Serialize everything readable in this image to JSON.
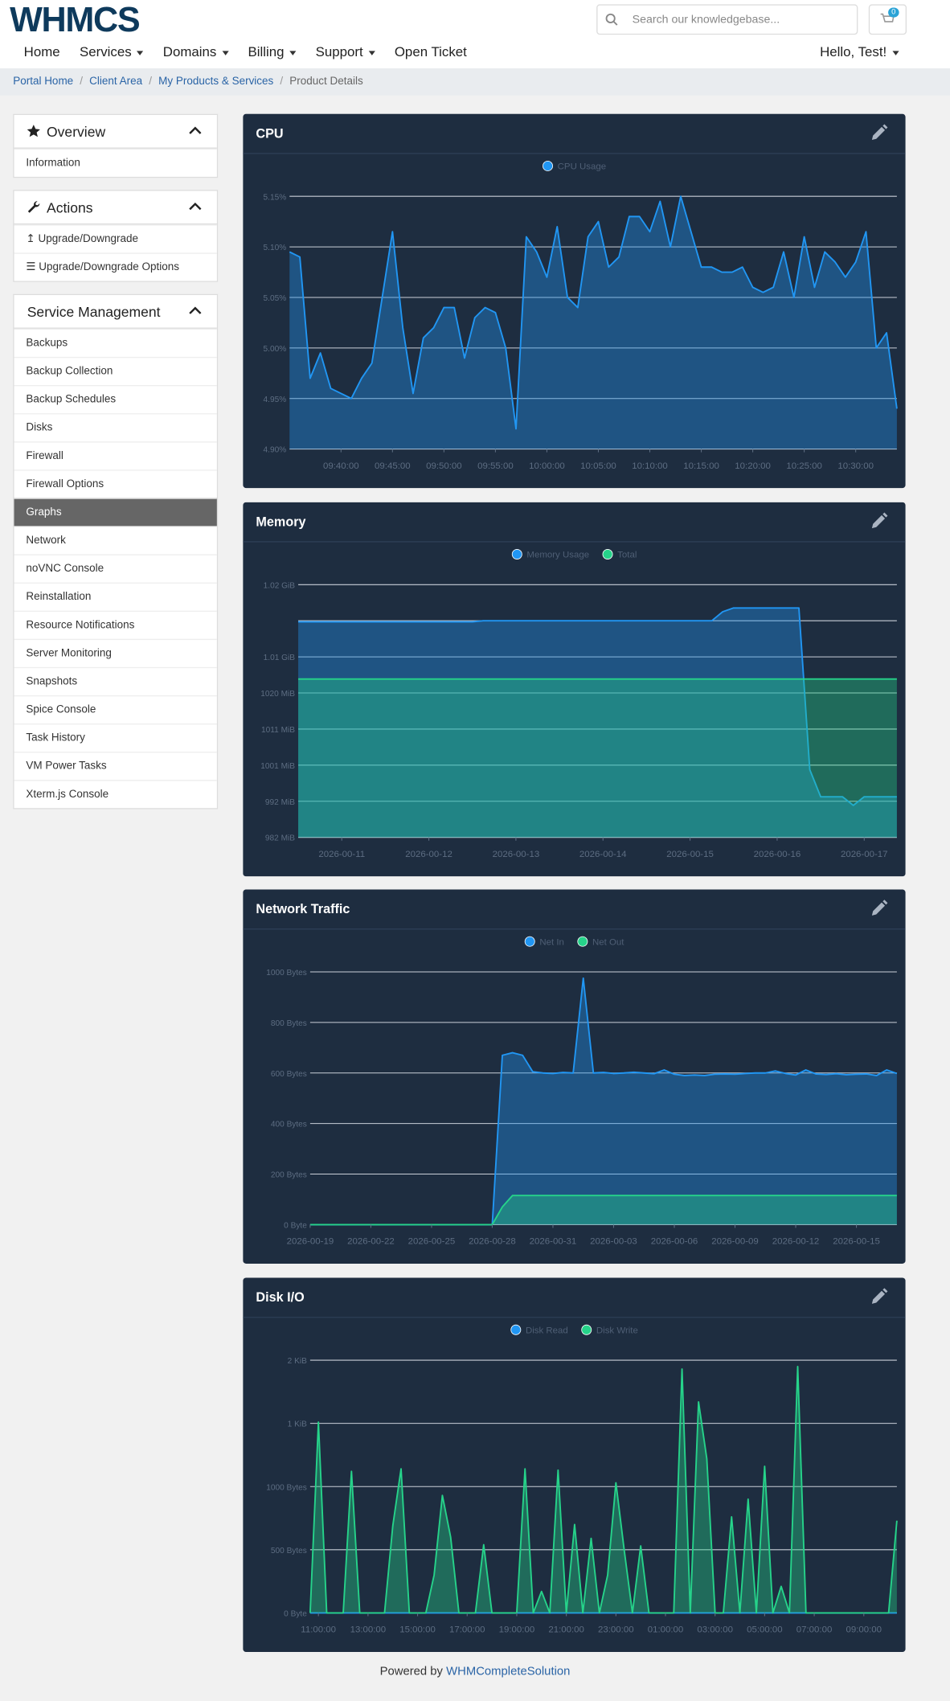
{
  "header": {
    "logo": "WHMCS",
    "search_placeholder": "Search our knowledgebase...",
    "cart_count": 0
  },
  "nav": {
    "items": [
      {
        "label": "Home",
        "dropdown": false
      },
      {
        "label": "Services",
        "dropdown": true
      },
      {
        "label": "Domains",
        "dropdown": true
      },
      {
        "label": "Billing",
        "dropdown": true
      },
      {
        "label": "Support",
        "dropdown": true
      },
      {
        "label": "Open Ticket",
        "dropdown": false
      }
    ],
    "user": "Hello, Test!"
  },
  "breadcrumb": [
    "Portal Home",
    "Client Area",
    "My Products & Services",
    "Product Details"
  ],
  "sidebar": [
    {
      "title": "Overview",
      "items": [
        "Information"
      ]
    },
    {
      "title": "Actions",
      "items": [
        "Upgrade/Downgrade",
        "Upgrade/Downgrade Options"
      ]
    },
    {
      "title": "Service Management",
      "items": [
        "Backups",
        "Backup Collection",
        "Backup Schedules",
        "Disks",
        "Firewall",
        "Firewall Options",
        "Graphs",
        "Network",
        "noVNC Console",
        "Reinstallation",
        "Resource Notifications",
        "Server Monitoring",
        "Snapshots",
        "Spice Console",
        "Task History",
        "VM Power Tasks",
        "Xterm.js Console"
      ],
      "active_index": 6
    }
  ],
  "chart_data": [
    {
      "type": "line",
      "title": "CPU",
      "categories": [
        null,
        null,
        null,
        null,
        null,
        "09:40:00",
        null,
        null,
        null,
        null,
        "09:45:00",
        null,
        null,
        null,
        null,
        "09:50:00",
        null,
        null,
        null,
        null,
        "09:55:00",
        null,
        null,
        null,
        null,
        "10:00:00",
        null,
        null,
        null,
        null,
        "10:05:00",
        null,
        null,
        null,
        null,
        "10:10:00",
        null,
        null,
        null,
        null,
        "10:15:00",
        null,
        null,
        null,
        null,
        "10:20:00",
        null,
        null,
        null,
        null,
        "10:25:00",
        null,
        null,
        null,
        null,
        "10:30:00",
        null,
        null,
        null,
        null
      ],
      "series": [
        {
          "name": "CPU Usage",
          "color": "#2196f3",
          "values": [
            5.095,
            5.09,
            4.97,
            4.995,
            4.96,
            4.955,
            4.95,
            4.97,
            4.985,
            5.05,
            5.115,
            5.02,
            4.955,
            5.01,
            5.02,
            5.04,
            5.04,
            4.99,
            5.03,
            5.04,
            5.035,
            5.0,
            4.92,
            5.11,
            5.095,
            5.07,
            5.12,
            5.05,
            5.04,
            5.11,
            5.125,
            5.08,
            5.09,
            5.13,
            5.13,
            5.115,
            5.145,
            5.1,
            5.15,
            5.115,
            5.08,
            5.08,
            5.075,
            5.075,
            5.08,
            5.06,
            5.055,
            5.06,
            5.095,
            5.05,
            5.11,
            5.06,
            5.095,
            5.085,
            5.07,
            5.085,
            5.115,
            5.0,
            5.015,
            4.94
          ]
        }
      ],
      "ylim": [
        4.9,
        5.15
      ],
      "yticks": [
        {
          "value": 4.9,
          "label": "4.90%"
        },
        {
          "value": 4.95,
          "label": "4.95%"
        },
        {
          "value": 5.0,
          "label": "5.00%"
        },
        {
          "value": 5.05,
          "label": "5.05%"
        },
        {
          "value": 5.1,
          "label": "5.10%"
        },
        {
          "value": 5.15,
          "label": "5.15%"
        }
      ],
      "grid": true
    },
    {
      "type": "line",
      "title": "Memory",
      "categories": [
        null,
        null,
        null,
        null,
        "2026-00-11",
        null,
        null,
        null,
        null,
        null,
        null,
        null,
        "2026-00-12",
        null,
        null,
        null,
        null,
        null,
        null,
        null,
        "2026-00-13",
        null,
        null,
        null,
        null,
        null,
        null,
        null,
        "2026-00-14",
        null,
        null,
        null,
        null,
        null,
        null,
        null,
        "2026-00-15",
        null,
        null,
        null,
        null,
        null,
        null,
        null,
        "2026-00-16",
        null,
        null,
        null,
        null,
        null,
        null,
        null,
        "2026-00-17",
        null,
        null,
        null
      ],
      "series": [
        {
          "name": "Memory Usage",
          "color": "#2196f3",
          "values": [
            1039.3,
            1039.3,
            1039.3,
            1039.3,
            1039.3,
            1039.3,
            1039.3,
            1039.3,
            1039.3,
            1039.3,
            1039.3,
            1039.3,
            1039.3,
            1039.3,
            1039.3,
            1039.3,
            1039.3,
            1039.6,
            1039.6,
            1039.6,
            1039.6,
            1039.6,
            1039.6,
            1039.6,
            1039.6,
            1039.6,
            1039.6,
            1039.6,
            1039.6,
            1039.6,
            1039.6,
            1039.6,
            1039.6,
            1039.6,
            1039.6,
            1039.6,
            1039.6,
            1039.6,
            1039.6,
            1042,
            1043,
            1043,
            1043,
            1043,
            1043,
            1043,
            1043,
            1000,
            992.8,
            992.8,
            992.8,
            990.5,
            992.8,
            992.8,
            992.8,
            992.8
          ]
        },
        {
          "name": "Total",
          "color": "#26d38a",
          "values": [
            1024.1,
            1024.1,
            1024.1,
            1024.1,
            1024.1,
            1024.1,
            1024.1,
            1024.1,
            1024.1,
            1024.1,
            1024.1,
            1024.1,
            1024.1,
            1024.1,
            1024.1,
            1024.1,
            1024.1,
            1024.1,
            1024.1,
            1024.1,
            1024.1,
            1024.1,
            1024.1,
            1024.1,
            1024.1,
            1024.1,
            1024.1,
            1024.1,
            1024.1,
            1024.1,
            1024.1,
            1024.1,
            1024.1,
            1024.1,
            1024.1,
            1024.1,
            1024.1,
            1024.1,
            1024.1,
            1024.1,
            1024.1,
            1024.1,
            1024.1,
            1024.1,
            1024.1,
            1024.1,
            1024.1,
            1024.1,
            1024.1,
            1024.1,
            1024.1,
            1024.1,
            1024.1,
            1024.1,
            1024.1,
            1024.1
          ]
        }
      ],
      "ylim": [
        982,
        1049.2
      ],
      "yticks": [
        {
          "value": 982,
          "label": "982 MiB"
        },
        {
          "value": 991.6,
          "label": "992 MiB"
        },
        {
          "value": 1001.2,
          "label": "1001 MiB"
        },
        {
          "value": 1010.8,
          "label": "1011 MiB"
        },
        {
          "value": 1020.4,
          "label": "1020 MiB"
        },
        {
          "value": 1030,
          "label": "1.01 GiB"
        },
        {
          "value": 1039.6,
          "label": null
        },
        {
          "value": 1049.2,
          "label": "1.02 GiB"
        }
      ],
      "grid": true
    },
    {
      "type": "line",
      "title": "Network Traffic",
      "categories": [
        "2026-00-19",
        null,
        null,
        null,
        null,
        null,
        "2026-00-22",
        null,
        null,
        null,
        null,
        null,
        "2026-00-25",
        null,
        null,
        null,
        null,
        null,
        "2026-00-28",
        null,
        null,
        null,
        null,
        null,
        "2026-00-31",
        null,
        null,
        null,
        null,
        null,
        "2026-00-03",
        null,
        null,
        null,
        null,
        null,
        "2026-00-06",
        null,
        null,
        null,
        null,
        null,
        "2026-00-09",
        null,
        null,
        null,
        null,
        null,
        "2026-00-12",
        null,
        null,
        null,
        null,
        null,
        "2026-00-15",
        null,
        null,
        null,
        null
      ],
      "series": [
        {
          "name": "Net In",
          "color": "#2196f3",
          "values": [
            0,
            0,
            0,
            0,
            0,
            0,
            0,
            0,
            0,
            0,
            0,
            0,
            0,
            0,
            0,
            0,
            0,
            0,
            0,
            670,
            680,
            670,
            605,
            600,
            598,
            602,
            600,
            975,
            600,
            602,
            598,
            600,
            603,
            600,
            597,
            612,
            595,
            590,
            592,
            590,
            595,
            596,
            595,
            598,
            600,
            600,
            608,
            598,
            592,
            612,
            596,
            594,
            597,
            593,
            595,
            596,
            590,
            612,
            598
          ]
        },
        {
          "name": "Net Out",
          "color": "#26d38a",
          "values": [
            0,
            0,
            0,
            0,
            0,
            0,
            0,
            0,
            0,
            0,
            0,
            0,
            0,
            0,
            0,
            0,
            0,
            0,
            0,
            70,
            115,
            115,
            115,
            115,
            115,
            115,
            115,
            115,
            115,
            115,
            115,
            115,
            115,
            115,
            115,
            115,
            115,
            115,
            115,
            115,
            115,
            115,
            115,
            115,
            115,
            115,
            115,
            115,
            115,
            115,
            115,
            115,
            115,
            115,
            115,
            115,
            115,
            115,
            115
          ]
        }
      ],
      "ylim": [
        0,
        1000
      ],
      "yticks": [
        {
          "value": 0,
          "label": "0 Byte"
        },
        {
          "value": 200,
          "label": "200 Bytes"
        },
        {
          "value": 400,
          "label": "400 Bytes"
        },
        {
          "value": 600,
          "label": "600 Bytes"
        },
        {
          "value": 800,
          "label": "800 Bytes"
        },
        {
          "value": 1000,
          "label": "1000 Bytes"
        }
      ],
      "grid": true
    },
    {
      "type": "line",
      "title": "Disk I/O",
      "categories": [
        null,
        "11:00:00",
        null,
        null,
        null,
        null,
        null,
        "13:00:00",
        null,
        null,
        null,
        null,
        null,
        "15:00:00",
        null,
        null,
        null,
        null,
        null,
        "17:00:00",
        null,
        null,
        null,
        null,
        null,
        "19:00:00",
        null,
        null,
        null,
        null,
        null,
        "21:00:00",
        null,
        null,
        null,
        null,
        null,
        "23:00:00",
        null,
        null,
        null,
        null,
        null,
        "01:00:00",
        null,
        null,
        null,
        null,
        null,
        "03:00:00",
        null,
        null,
        null,
        null,
        null,
        "05:00:00",
        null,
        null,
        null,
        null,
        null,
        "07:00:00",
        null,
        null,
        null,
        null,
        null,
        "09:00:00",
        null,
        null,
        null,
        null
      ],
      "series": [
        {
          "name": "Disk Read",
          "color": "#2196f3",
          "values": [
            0,
            0,
            0,
            0,
            0,
            0,
            0,
            0,
            0,
            0,
            0,
            0,
            0,
            0,
            0,
            0,
            0,
            0,
            0,
            0,
            0,
            0,
            0,
            0,
            0,
            0,
            0,
            0,
            0,
            0,
            0,
            0,
            0,
            0,
            0,
            0,
            0,
            0,
            0,
            0,
            0,
            0,
            0,
            0,
            0,
            0,
            0,
            0,
            0,
            0,
            0,
            0,
            0,
            0,
            0,
            0,
            0,
            0,
            0,
            0,
            0,
            0,
            0,
            0,
            0,
            0,
            0,
            0,
            0,
            0,
            0,
            0
          ]
        },
        {
          "name": "Disk Write",
          "color": "#26d38a",
          "values": [
            0,
            1510,
            0,
            0,
            0,
            1120,
            0,
            0,
            0,
            0,
            690,
            1140,
            0,
            0,
            0,
            300,
            930,
            600,
            0,
            0,
            0,
            540,
            0,
            0,
            0,
            0,
            1140,
            0,
            170,
            0,
            1130,
            0,
            700,
            0,
            590,
            0,
            300,
            1030,
            500,
            0,
            530,
            0,
            0,
            0,
            0,
            1930,
            0,
            1670,
            1220,
            0,
            0,
            760,
            0,
            900,
            0,
            1160,
            0,
            210,
            0,
            1950,
            0,
            0,
            0,
            0,
            0,
            0,
            0,
            0,
            0,
            0,
            0,
            730
          ]
        }
      ],
      "ylim": [
        0,
        2000
      ],
      "yticks": [
        {
          "value": 0,
          "label": "0 Byte"
        },
        {
          "value": 500,
          "label": "500 Bytes"
        },
        {
          "value": 1000,
          "label": "1000 Bytes"
        },
        {
          "value": 1500,
          "label": "1 KiB"
        },
        {
          "value": 2000,
          "label": "2 KiB"
        }
      ],
      "grid": true
    }
  ],
  "footer": {
    "text": "Powered by",
    "link": "WHMCompleteSolution"
  }
}
